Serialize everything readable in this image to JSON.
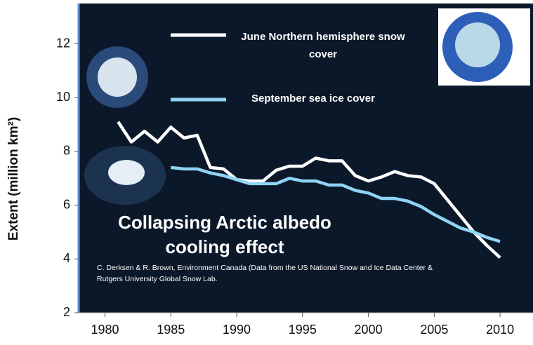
{
  "chart_data": {
    "type": "line",
    "y_label": "Extent  (million km²)",
    "annotations": [
      "Collapsing Arctic albedo cooling effect",
      "C. Derksen & R. Brown, Environment Canada (Data from the US National Snow and Ice Data Center & Rutgers University Global Snow Lab."
    ],
    "x": [
      1981,
      1982,
      1983,
      1984,
      1985,
      1986,
      1987,
      1988,
      1989,
      1990,
      1991,
      1992,
      1993,
      1994,
      1995,
      1996,
      1997,
      1998,
      1999,
      2000,
      2001,
      2002,
      2003,
      2004,
      2005,
      2006,
      2007,
      2008,
      2009,
      2010
    ],
    "series": [
      {
        "name": "June  Northern hemisphere snow cover",
        "color": "#ffffff",
        "values": [
          9.1,
          8.35,
          8.75,
          8.35,
          8.9,
          8.5,
          8.6,
          7.4,
          7.35,
          6.95,
          6.9,
          6.9,
          7.3,
          7.45,
          7.45,
          7.75,
          7.65,
          7.65,
          7.1,
          6.9,
          7.05,
          7.25,
          7.1,
          7.05,
          6.8,
          6.2,
          5.6,
          5.0,
          4.5,
          4.05
        ]
      },
      {
        "name": "September sea ice cover",
        "color": "#8fd3f5",
        "values": [
          null,
          null,
          null,
          null,
          7.4,
          7.35,
          7.35,
          7.2,
          7.1,
          6.95,
          6.8,
          6.8,
          6.8,
          7.0,
          6.9,
          6.9,
          6.75,
          6.75,
          6.55,
          6.45,
          6.25,
          6.25,
          6.15,
          5.95,
          5.65,
          5.4,
          5.15,
          5.0,
          4.8,
          4.65
        ]
      }
    ],
    "xlim": [
      1978,
      2012.5
    ],
    "xticks": [
      1980,
      1985,
      1990,
      1995,
      2000,
      2005,
      2010
    ],
    "ylim": [
      2,
      13.5
    ],
    "yticks": [
      2,
      4,
      6,
      8,
      10,
      12
    ]
  }
}
